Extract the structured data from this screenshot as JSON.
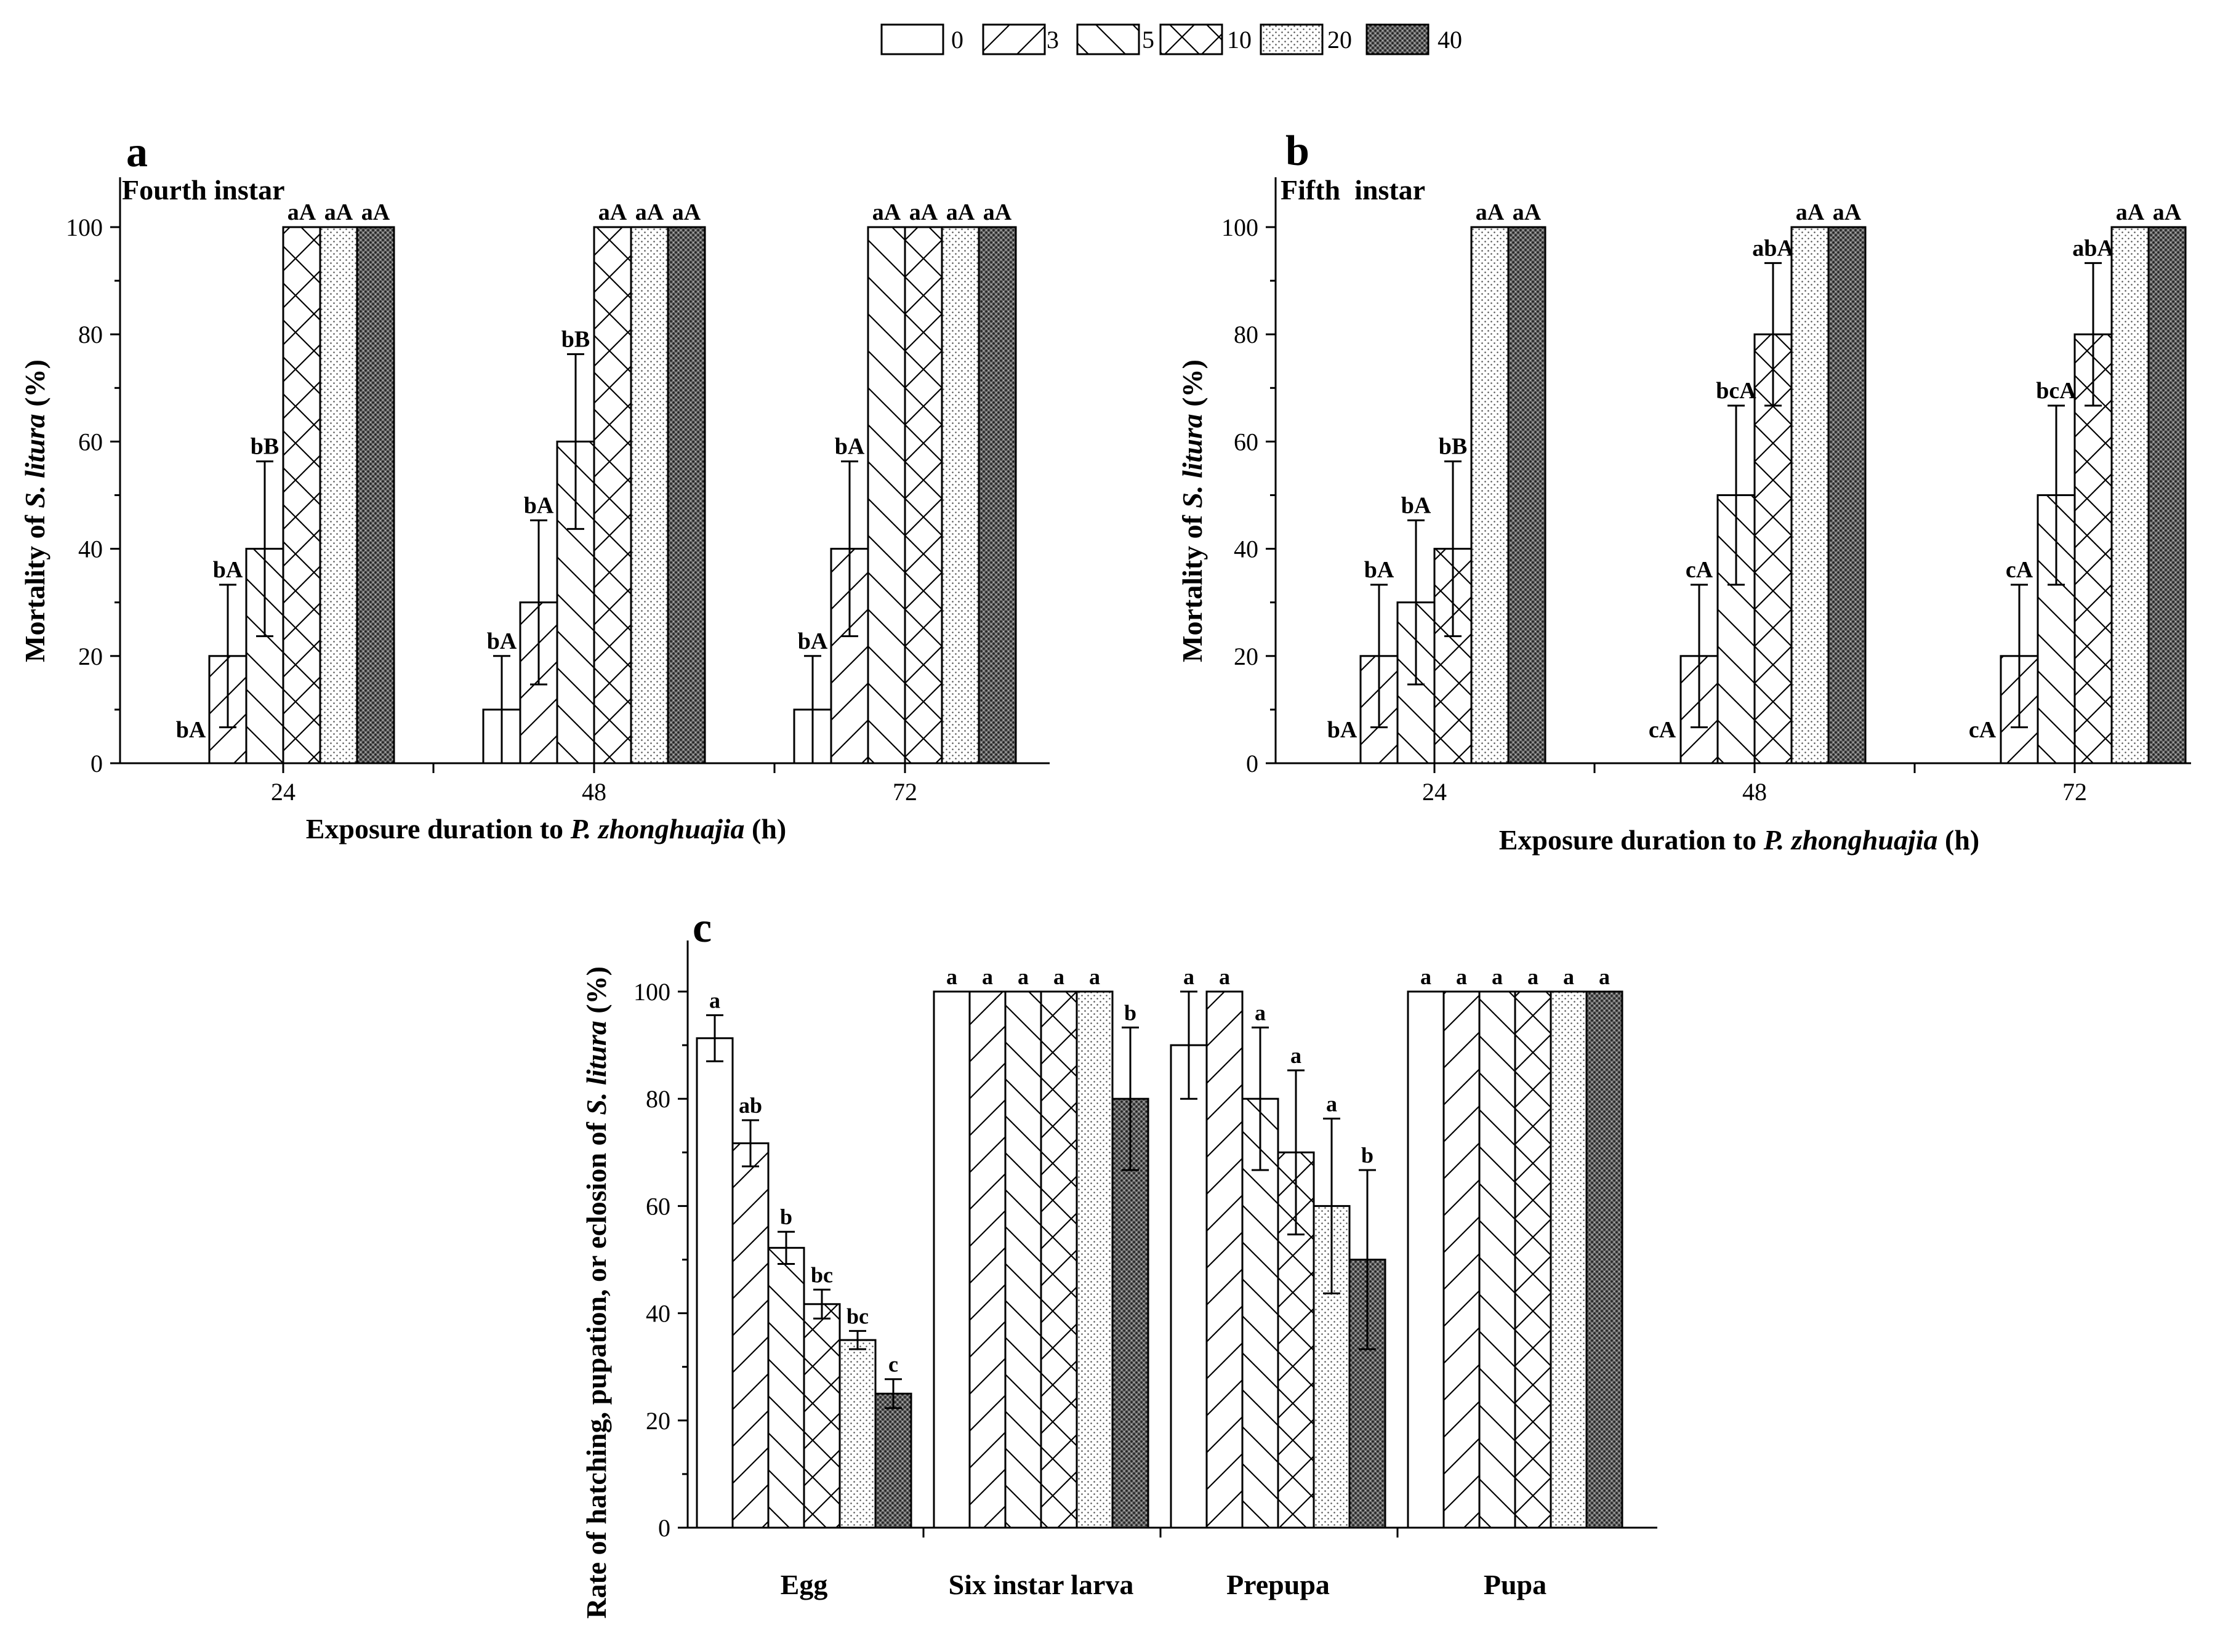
{
  "legend": {
    "items": [
      {
        "label": "0",
        "pattern": "empty"
      },
      {
        "label": "3",
        "pattern": "fwd"
      },
      {
        "label": "5",
        "pattern": "back"
      },
      {
        "label": "10",
        "pattern": "cross"
      },
      {
        "label": "20",
        "pattern": "dots"
      },
      {
        "label": "40",
        "pattern": "dark"
      }
    ]
  },
  "chart_data": [
    {
      "panel": "a",
      "type": "bar",
      "subtitle": "Fourth instar",
      "xlabel_pre": "Exposure duration to ",
      "xlabel_italic": "P. zhonghuajia",
      "xlabel_post": " (h)",
      "ylabel_pre": "Mortality of ",
      "ylabel_italic": "S. litura",
      "ylabel_post": " (%)",
      "ylim": [
        0,
        110
      ],
      "yticks": [
        0,
        20,
        40,
        60,
        80,
        100
      ],
      "categories": [
        "24",
        "48",
        "72"
      ],
      "series_names": [
        "0",
        "3",
        "5",
        "10",
        "20",
        "40"
      ],
      "values": [
        [
          0,
          20,
          40,
          100,
          100,
          100
        ],
        [
          10,
          30,
          60,
          100,
          100,
          100
        ],
        [
          10,
          40,
          100,
          100,
          100,
          100
        ]
      ],
      "errors": [
        [
          0,
          13.3,
          16.3,
          0,
          0,
          0
        ],
        [
          10,
          15.3,
          16.3,
          0,
          0,
          0
        ],
        [
          10,
          16.3,
          0,
          0,
          0,
          0
        ]
      ],
      "labels": [
        [
          "bA",
          "bA",
          "bB",
          "aA",
          "aA",
          "aA"
        ],
        [
          "bA",
          "bA",
          "bB",
          "aA",
          "aA",
          "aA"
        ],
        [
          "bA",
          "bA",
          "aA",
          "aA",
          "aA",
          "aA"
        ]
      ]
    },
    {
      "panel": "b",
      "type": "bar",
      "subtitle": "Fifth  instar",
      "xlabel_pre": "Exposure duration to ",
      "xlabel_italic": "P. zhonghuajia",
      "xlabel_post": " (h)",
      "ylabel_pre": "Mortality of ",
      "ylabel_italic": "S. litura",
      "ylabel_post": " (%)",
      "ylim": [
        0,
        110
      ],
      "yticks": [
        0,
        20,
        40,
        60,
        80,
        100
      ],
      "categories": [
        "24",
        "48",
        "72"
      ],
      "series_names": [
        "0",
        "3",
        "5",
        "10",
        "20",
        "40"
      ],
      "values": [
        [
          0,
          20,
          30,
          40,
          100,
          100
        ],
        [
          0,
          20,
          50,
          80,
          100,
          100
        ],
        [
          0,
          20,
          50,
          80,
          100,
          100
        ]
      ],
      "errors": [
        [
          0,
          13.3,
          15.3,
          16.3,
          0,
          0
        ],
        [
          0,
          13.3,
          16.7,
          13.3,
          0,
          0
        ],
        [
          0,
          13.3,
          16.7,
          13.3,
          0,
          0
        ]
      ],
      "labels": [
        [
          "bA",
          "bA",
          "bA",
          "bB",
          "aA",
          "aA"
        ],
        [
          "cA",
          "cA",
          "bcA",
          "abA",
          "aA",
          "aA"
        ],
        [
          "cA",
          "cA",
          "bcA",
          "abA",
          "aA",
          "aA"
        ]
      ]
    },
    {
      "panel": "c",
      "type": "bar",
      "subtitle": "",
      "xlabel_pre": "",
      "xlabel_italic": "",
      "xlabel_post": "",
      "ylabel_pre": "Rate of hatching, pupation, or eclosion of ",
      "ylabel_italic": "S. litura",
      "ylabel_post": " (%)",
      "ylim": [
        0,
        110
      ],
      "yticks": [
        0,
        20,
        40,
        60,
        80,
        100
      ],
      "categories": [
        "Egg",
        "Six instar larva",
        "Prepupa",
        "Pupa"
      ],
      "series_names": [
        "0",
        "3",
        "5",
        "10",
        "20",
        "40"
      ],
      "values": [
        [
          91.3,
          71.7,
          52.2,
          41.7,
          35,
          25
        ],
        [
          100,
          100,
          100,
          100,
          100,
          80
        ],
        [
          90,
          100,
          80,
          70,
          60,
          50
        ],
        [
          100,
          100,
          100,
          100,
          100,
          100
        ]
      ],
      "errors": [
        [
          4.3,
          4.3,
          3,
          2.7,
          1.7,
          2.7
        ],
        [
          0,
          0,
          0,
          0,
          0,
          13.3
        ],
        [
          10,
          0,
          13.3,
          15.3,
          16.3,
          16.7
        ],
        [
          0,
          0,
          0,
          0,
          0,
          0
        ]
      ],
      "labels": [
        [
          "a",
          "ab",
          "b",
          "bc",
          "bc",
          "c"
        ],
        [
          "a",
          "a",
          "a",
          "a",
          "a",
          "b"
        ],
        [
          "a",
          "a",
          "a",
          "a",
          "a",
          "b"
        ],
        [
          "a",
          "a",
          "a",
          "a",
          "a",
          "a"
        ]
      ]
    }
  ]
}
